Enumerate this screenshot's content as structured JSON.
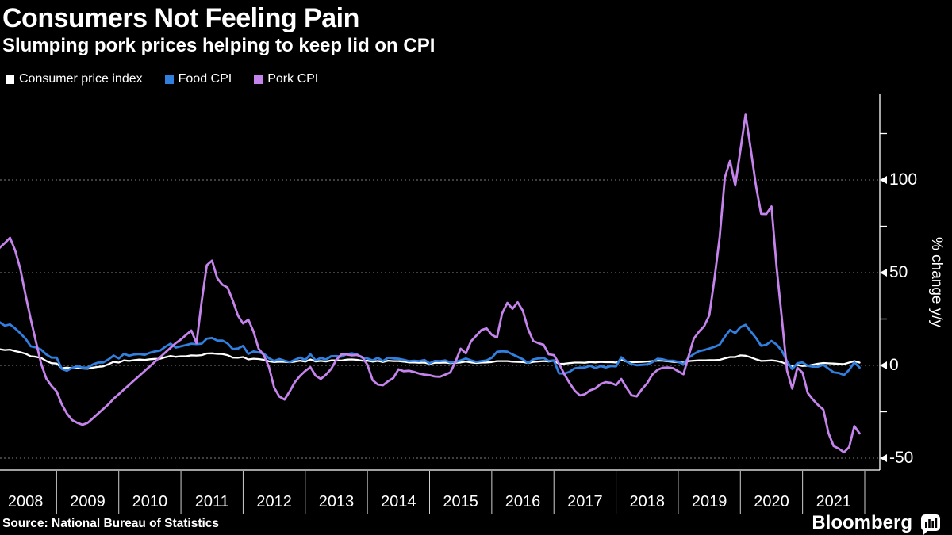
{
  "footer": {
    "source": "Source: National Bureau of Statistics",
    "brand": "Bloomberg"
  },
  "chart_data": {
    "type": "line",
    "title": "Consumers Not Feeling Pain",
    "subtitle": "Slumping pork prices helping to keep lid on CPI",
    "ylabel": "% change y/y",
    "x_unit": "month",
    "x_start": "2008-01",
    "x_end": "2021-12",
    "x_years": [
      2008,
      2009,
      2010,
      2011,
      2012,
      2013,
      2014,
      2015,
      2016,
      2017,
      2018,
      2019,
      2020,
      2021
    ],
    "y_ticks": [
      100,
      50,
      0,
      -50
    ],
    "y_minor_ticks": [
      125,
      75,
      25,
      -25
    ],
    "ylim": [
      -56,
      147
    ],
    "grid": "dashed horizontal at labeled ticks",
    "legend_position": "top-left",
    "series": [
      {
        "name": "Consumer price index",
        "color": "#ffffff",
        "values": [
          7.1,
          8.7,
          8.3,
          8.5,
          7.7,
          7.1,
          6.3,
          4.9,
          4.6,
          4.0,
          2.4,
          1.2,
          1.0,
          -1.6,
          -1.2,
          -1.5,
          -1.4,
          -1.7,
          -1.8,
          -1.2,
          -0.8,
          -0.5,
          0.6,
          1.9,
          1.5,
          2.7,
          2.4,
          2.8,
          3.1,
          2.9,
          3.3,
          3.5,
          3.6,
          4.4,
          5.1,
          4.6,
          4.9,
          4.9,
          5.4,
          5.3,
          5.5,
          6.4,
          6.5,
          6.2,
          6.1,
          5.5,
          4.2,
          4.1,
          4.5,
          3.2,
          3.6,
          3.4,
          3.0,
          2.2,
          1.8,
          2.0,
          1.9,
          1.7,
          2.0,
          2.5,
          2.0,
          3.2,
          2.1,
          2.4,
          2.1,
          2.7,
          2.7,
          2.6,
          3.1,
          3.2,
          3.0,
          2.5,
          2.5,
          2.0,
          2.4,
          1.8,
          2.5,
          2.3,
          2.3,
          2.0,
          1.6,
          1.6,
          1.4,
          1.5,
          0.8,
          1.4,
          1.4,
          1.5,
          1.2,
          1.4,
          1.6,
          2.0,
          1.6,
          1.3,
          1.5,
          1.6,
          1.8,
          2.3,
          2.3,
          2.3,
          2.0,
          1.9,
          1.8,
          1.3,
          1.9,
          2.1,
          2.3,
          2.1,
          2.5,
          0.8,
          0.9,
          1.2,
          1.5,
          1.5,
          1.4,
          1.8,
          1.6,
          1.9,
          1.7,
          1.8,
          1.5,
          2.9,
          2.1,
          1.8,
          1.8,
          1.9,
          2.1,
          2.3,
          2.5,
          2.5,
          2.2,
          1.9,
          1.7,
          1.5,
          2.3,
          2.5,
          2.7,
          2.7,
          2.8,
          2.8,
          3.0,
          3.8,
          4.5,
          4.5,
          5.4,
          5.2,
          4.3,
          3.3,
          2.4,
          2.5,
          2.7,
          2.4,
          1.7,
          0.5,
          -0.5,
          0.2,
          -0.3,
          -0.2,
          0.4,
          0.9,
          1.3,
          1.1,
          1.0,
          0.8,
          0.7,
          1.5,
          2.3,
          1.5
        ]
      },
      {
        "name": "Food CPI",
        "color": "#3180e0",
        "values": [
          18.2,
          23.3,
          21.4,
          22.1,
          19.9,
          17.3,
          14.4,
          10.3,
          9.7,
          8.5,
          5.9,
          4.2,
          4.2,
          -1.9,
          -2.9,
          -1.3,
          -0.6,
          -1.1,
          -1.2,
          0.5,
          1.5,
          1.6,
          3.2,
          5.3,
          3.7,
          6.2,
          5.2,
          5.9,
          6.1,
          5.7,
          6.8,
          7.5,
          8.0,
          10.1,
          11.7,
          9.6,
          10.3,
          11.0,
          11.7,
          11.5,
          11.7,
          14.4,
          14.8,
          13.4,
          13.4,
          11.9,
          8.8,
          9.1,
          10.5,
          6.2,
          7.5,
          7.0,
          6.4,
          3.8,
          2.4,
          3.4,
          2.5,
          1.8,
          3.0,
          4.2,
          2.9,
          6.0,
          2.7,
          4.0,
          3.2,
          4.9,
          5.0,
          4.7,
          6.1,
          6.5,
          5.9,
          4.1,
          3.7,
          2.7,
          4.1,
          2.3,
          4.1,
          3.7,
          3.6,
          3.0,
          2.3,
          2.5,
          2.3,
          2.9,
          1.1,
          2.4,
          2.3,
          2.7,
          1.6,
          1.9,
          2.7,
          3.7,
          2.7,
          1.9,
          2.3,
          2.7,
          4.1,
          7.3,
          7.6,
          7.4,
          5.9,
          4.6,
          3.3,
          1.3,
          3.2,
          3.7,
          4.0,
          2.4,
          2.7,
          -4.3,
          -4.4,
          -3.5,
          -1.6,
          -1.2,
          -1.1,
          -0.2,
          -1.4,
          -0.4,
          -1.1,
          -0.4,
          -0.5,
          4.4,
          2.1,
          0.7,
          0.1,
          0.3,
          0.5,
          1.7,
          3.6,
          3.3,
          2.5,
          2.5,
          1.9,
          0.7,
          4.1,
          6.1,
          7.7,
          8.3,
          9.1,
          10.0,
          11.2,
          15.5,
          19.1,
          17.4,
          20.6,
          21.9,
          18.3,
          14.8,
          10.6,
          11.1,
          13.2,
          11.2,
          7.9,
          2.2,
          -2.0,
          1.2,
          1.6,
          -0.2,
          -0.7,
          -0.7,
          0.3,
          -1.7,
          -3.7,
          -4.1,
          -5.2,
          -2.4,
          1.6,
          -1.2
        ]
      },
      {
        "name": "Pork CPI",
        "color": "#c583ec",
        "values": [
          58.8,
          63.4,
          66.0,
          68.8,
          62.0,
          52.0,
          38.0,
          25.0,
          13.0,
          1.0,
          -7.0,
          -11.0,
          -14.0,
          -21.0,
          -26.0,
          -29.5,
          -31.0,
          -32.0,
          -31.0,
          -28.5,
          -26.0,
          -23.5,
          -21.0,
          -18.0,
          -15.5,
          -13.0,
          -10.5,
          -8.0,
          -5.5,
          -3.0,
          -0.5,
          2.0,
          4.5,
          7.0,
          9.5,
          12.0,
          14.0,
          16.5,
          18.8,
          12.0,
          34.5,
          54.0,
          56.5,
          47.0,
          43.5,
          42.0,
          35.0,
          26.9,
          22.6,
          24.7,
          18.3,
          9.0,
          5.5,
          -1.0,
          -12.0,
          -16.8,
          -18.4,
          -14.0,
          -9.0,
          -5.6,
          -3.0,
          -1.0,
          -5.5,
          -7.3,
          -5.0,
          -1.9,
          3.0,
          6.0,
          5.9,
          5.4,
          5.6,
          4.5,
          0.4,
          -8.0,
          -10.3,
          -10.7,
          -8.5,
          -6.8,
          -2.1,
          -3.1,
          -2.9,
          -3.5,
          -4.4,
          -5.0,
          -5.3,
          -6.0,
          -6.1,
          -5.0,
          -3.8,
          2.0,
          9.0,
          6.5,
          13.0,
          16.0,
          19.0,
          20.0,
          16.5,
          15.0,
          28.0,
          33.7,
          30.5,
          34.0,
          29.5,
          19.7,
          13.2,
          12.0,
          11.1,
          6.0,
          5.5,
          0.9,
          -4.7,
          -9.4,
          -13.5,
          -16.2,
          -15.5,
          -13.4,
          -12.4,
          -10.1,
          -9.0,
          -9.4,
          -10.6,
          -7.3,
          -12.0,
          -16.1,
          -16.7,
          -12.8,
          -9.6,
          -4.9,
          -2.4,
          -1.3,
          -1.1,
          -1.5,
          -3.2,
          -4.8,
          5.1,
          14.4,
          18.2,
          21.1,
          27.0,
          46.7,
          69.3,
          101.3,
          110.2,
          97.0,
          116.0,
          135.2,
          116.4,
          96.9,
          81.7,
          81.6,
          85.7,
          52.6,
          25.5,
          -2.8,
          -12.5,
          -1.3,
          -3.9,
          -14.9,
          -18.4,
          -21.4,
          -23.8,
          -36.5,
          -43.5,
          -44.9,
          -46.9,
          -44.0,
          -32.7,
          -36.7
        ]
      }
    ]
  }
}
